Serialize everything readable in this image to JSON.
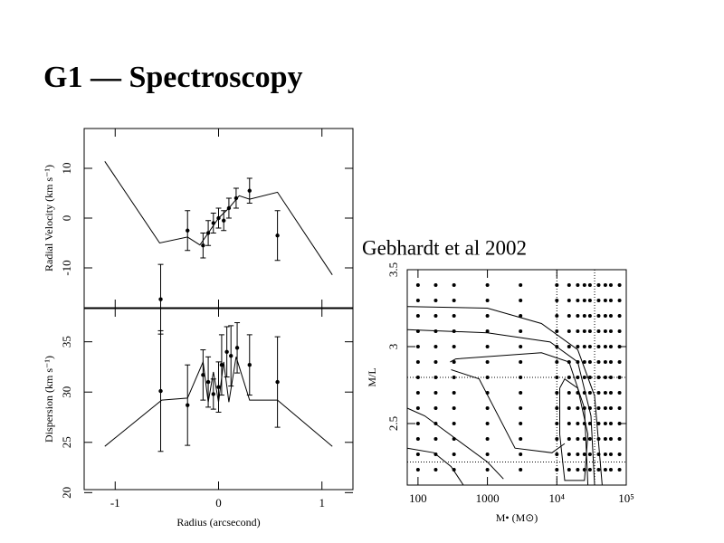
{
  "title": "G1 — Spectroscopy",
  "chart_data": [
    {
      "type": "scatter",
      "ylabel": "Radial Velocity (km s⁻¹)",
      "xlim": [
        -1.3,
        1.3
      ],
      "xticks": [
        -1,
        0,
        1
      ],
      "ylim": [
        -18,
        18
      ],
      "yticks": [
        -10,
        0,
        10
      ],
      "x": [
        -0.56,
        -0.3,
        -0.15,
        -0.1,
        -0.05,
        0,
        0.05,
        0.1,
        0.17,
        0.3,
        0.57
      ],
      "values": [
        -16.3,
        -2.5,
        -5.5,
        -3,
        -1,
        0,
        -0.5,
        2,
        4,
        5.5,
        -3.5
      ],
      "errors": [
        7,
        4,
        2.5,
        2.5,
        2,
        2,
        2,
        2,
        2,
        2.5,
        5
      ],
      "model": {
        "x": [
          -1.1,
          -0.57,
          -0.3,
          -0.18,
          -0.1,
          0,
          0.1,
          0.2,
          0.3,
          0.57,
          1.1
        ],
        "values": [
          11.4,
          -5,
          -3.8,
          -5.4,
          -3,
          0,
          2,
          4.5,
          3.8,
          5.2,
          -11.4
        ]
      }
    },
    {
      "type": "scatter",
      "ylabel": "Dispersion (km s⁻¹)",
      "xlabel": "Radius (arcsecond)",
      "xlim": [
        -1.3,
        1.3
      ],
      "xticks": [
        -1,
        0,
        1
      ],
      "ylim": [
        20.3,
        38.3
      ],
      "yticks": [
        20,
        25,
        30,
        35
      ],
      "x": [
        -0.56,
        -0.3,
        -0.15,
        -0.1,
        -0.05,
        0,
        0.03,
        0.08,
        0.12,
        0.18,
        0.3,
        0.57
      ],
      "values": [
        30.1,
        28.7,
        31.7,
        31,
        29.8,
        30.5,
        32.7,
        34,
        33.6,
        34.4,
        32.7,
        31
      ],
      "errors": [
        6,
        4,
        2.5,
        2.5,
        1.5,
        2.5,
        3,
        2.5,
        3,
        2.5,
        3,
        4.5
      ],
      "model": {
        "x": [
          -1.1,
          -0.55,
          -0.3,
          -0.15,
          -0.1,
          -0.05,
          0,
          0.05,
          0.1,
          0.17,
          0.3,
          0.57,
          1.1
        ],
        "values": [
          24.6,
          29.2,
          29.4,
          33,
          29,
          32,
          29,
          33,
          29,
          33.5,
          29.2,
          29.2,
          24.6
        ]
      }
    },
    {
      "type": "contour",
      "title": "Gebhardt et al 2002",
      "xlabel": "M• (M⊙)",
      "ylabel": "M/L",
      "xscale": "log",
      "xlim": [
        70,
        100000
      ],
      "xticks": [
        100,
        1000,
        {
          "value": 10000,
          "label": "10⁴"
        },
        {
          "value": 100000,
          "label": "10⁵"
        }
      ],
      "ylim": [
        2.1,
        3.5
      ],
      "yticks": [
        2.5,
        3,
        3.5
      ],
      "grid": {
        "x": [
          100,
          180,
          330,
          1000,
          3000,
          10000,
          15000,
          20000,
          25000,
          30000,
          40000,
          50000,
          60000,
          80000
        ],
        "y": [
          2.2,
          2.3,
          2.4,
          2.5,
          2.6,
          2.7,
          2.8,
          2.9,
          3.0,
          3.1,
          3.2,
          3.3,
          3.4
        ]
      },
      "contours": [
        {
          "x": [
            70,
            1000,
            6000,
            20000,
            35000,
            45000
          ],
          "values": [
            3.26,
            3.25,
            3.15,
            2.98,
            2.68,
            2.1
          ]
        },
        {
          "x": [
            70,
            1000,
            8000,
            20000,
            31000,
            35000
          ],
          "values": [
            3.11,
            3.09,
            3.03,
            2.9,
            2.55,
            2.1
          ]
        },
        {
          "x": [
            290,
            350,
            6000,
            15000,
            25000,
            28000
          ],
          "values": [
            2.9,
            2.92,
            2.96,
            2.9,
            2.6,
            2.1
          ]
        },
        {
          "x": [
            300,
            760,
            2500,
            8500,
            13000
          ],
          "values": [
            2.85,
            2.79,
            2.34,
            2.31,
            2.37
          ]
        },
        {
          "x": [
            11000,
            13000,
            20000,
            28000,
            25000,
            13000,
            11000,
            11000
          ],
          "values": [
            2.73,
            2.79,
            2.73,
            2.43,
            2.13,
            2.13,
            2.43,
            2.73
          ]
        },
        {
          "x": [
            70,
            125,
            1000,
            1700
          ],
          "values": [
            2.6,
            2.55,
            2.25,
            2.14
          ]
        },
        {
          "x": [
            70,
            170,
            300,
            450
          ],
          "values": [
            2.34,
            2.31,
            2.22,
            2.1
          ]
        }
      ],
      "reference_x": [
        10000,
        35000
      ],
      "reference_y": [
        2.8,
        2.25
      ]
    }
  ]
}
